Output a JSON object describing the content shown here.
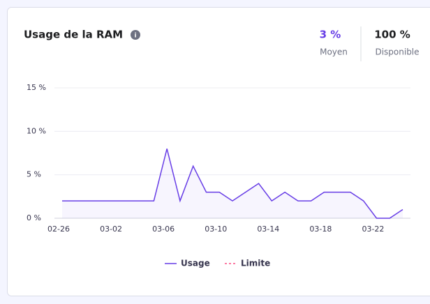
{
  "header": {
    "title": "Usage de la RAM",
    "stats": [
      {
        "value": "3 %",
        "label": "Moyen"
      },
      {
        "value": "100 %",
        "label": "Disponible"
      }
    ]
  },
  "chart_data": {
    "type": "line",
    "categories": [
      "02-26",
      null,
      null,
      null,
      "03-02",
      null,
      null,
      null,
      "03-06",
      null,
      null,
      null,
      "03-10",
      null,
      null,
      null,
      "03-14",
      null,
      null,
      null,
      "03-18",
      null,
      null,
      null,
      "03-22",
      null,
      null
    ],
    "series": [
      {
        "name": "Usage",
        "color": "#673de6",
        "values": [
          2,
          2,
          2,
          2,
          2,
          2,
          2,
          2,
          8,
          2,
          6,
          3,
          3,
          2,
          3,
          4,
          2,
          3,
          2,
          2,
          3,
          3,
          3,
          2,
          0,
          0,
          1
        ]
      },
      {
        "name": "Limite",
        "color": "#fc5185",
        "dashed": true,
        "values": [
          null,
          null,
          null,
          null,
          null,
          null,
          null,
          null,
          null,
          null,
          null,
          null,
          null,
          null,
          null,
          null,
          null,
          null,
          null,
          null,
          null,
          null,
          null,
          null,
          null,
          null,
          null
        ]
      }
    ],
    "ylim": [
      0,
      15
    ],
    "yticks": [
      {
        "value": 0,
        "label": "0 %"
      },
      {
        "value": 5,
        "label": "5 %"
      },
      {
        "value": 10,
        "label": "10 %"
      },
      {
        "value": 15,
        "label": "15 %"
      }
    ],
    "grid": true,
    "area": true
  }
}
